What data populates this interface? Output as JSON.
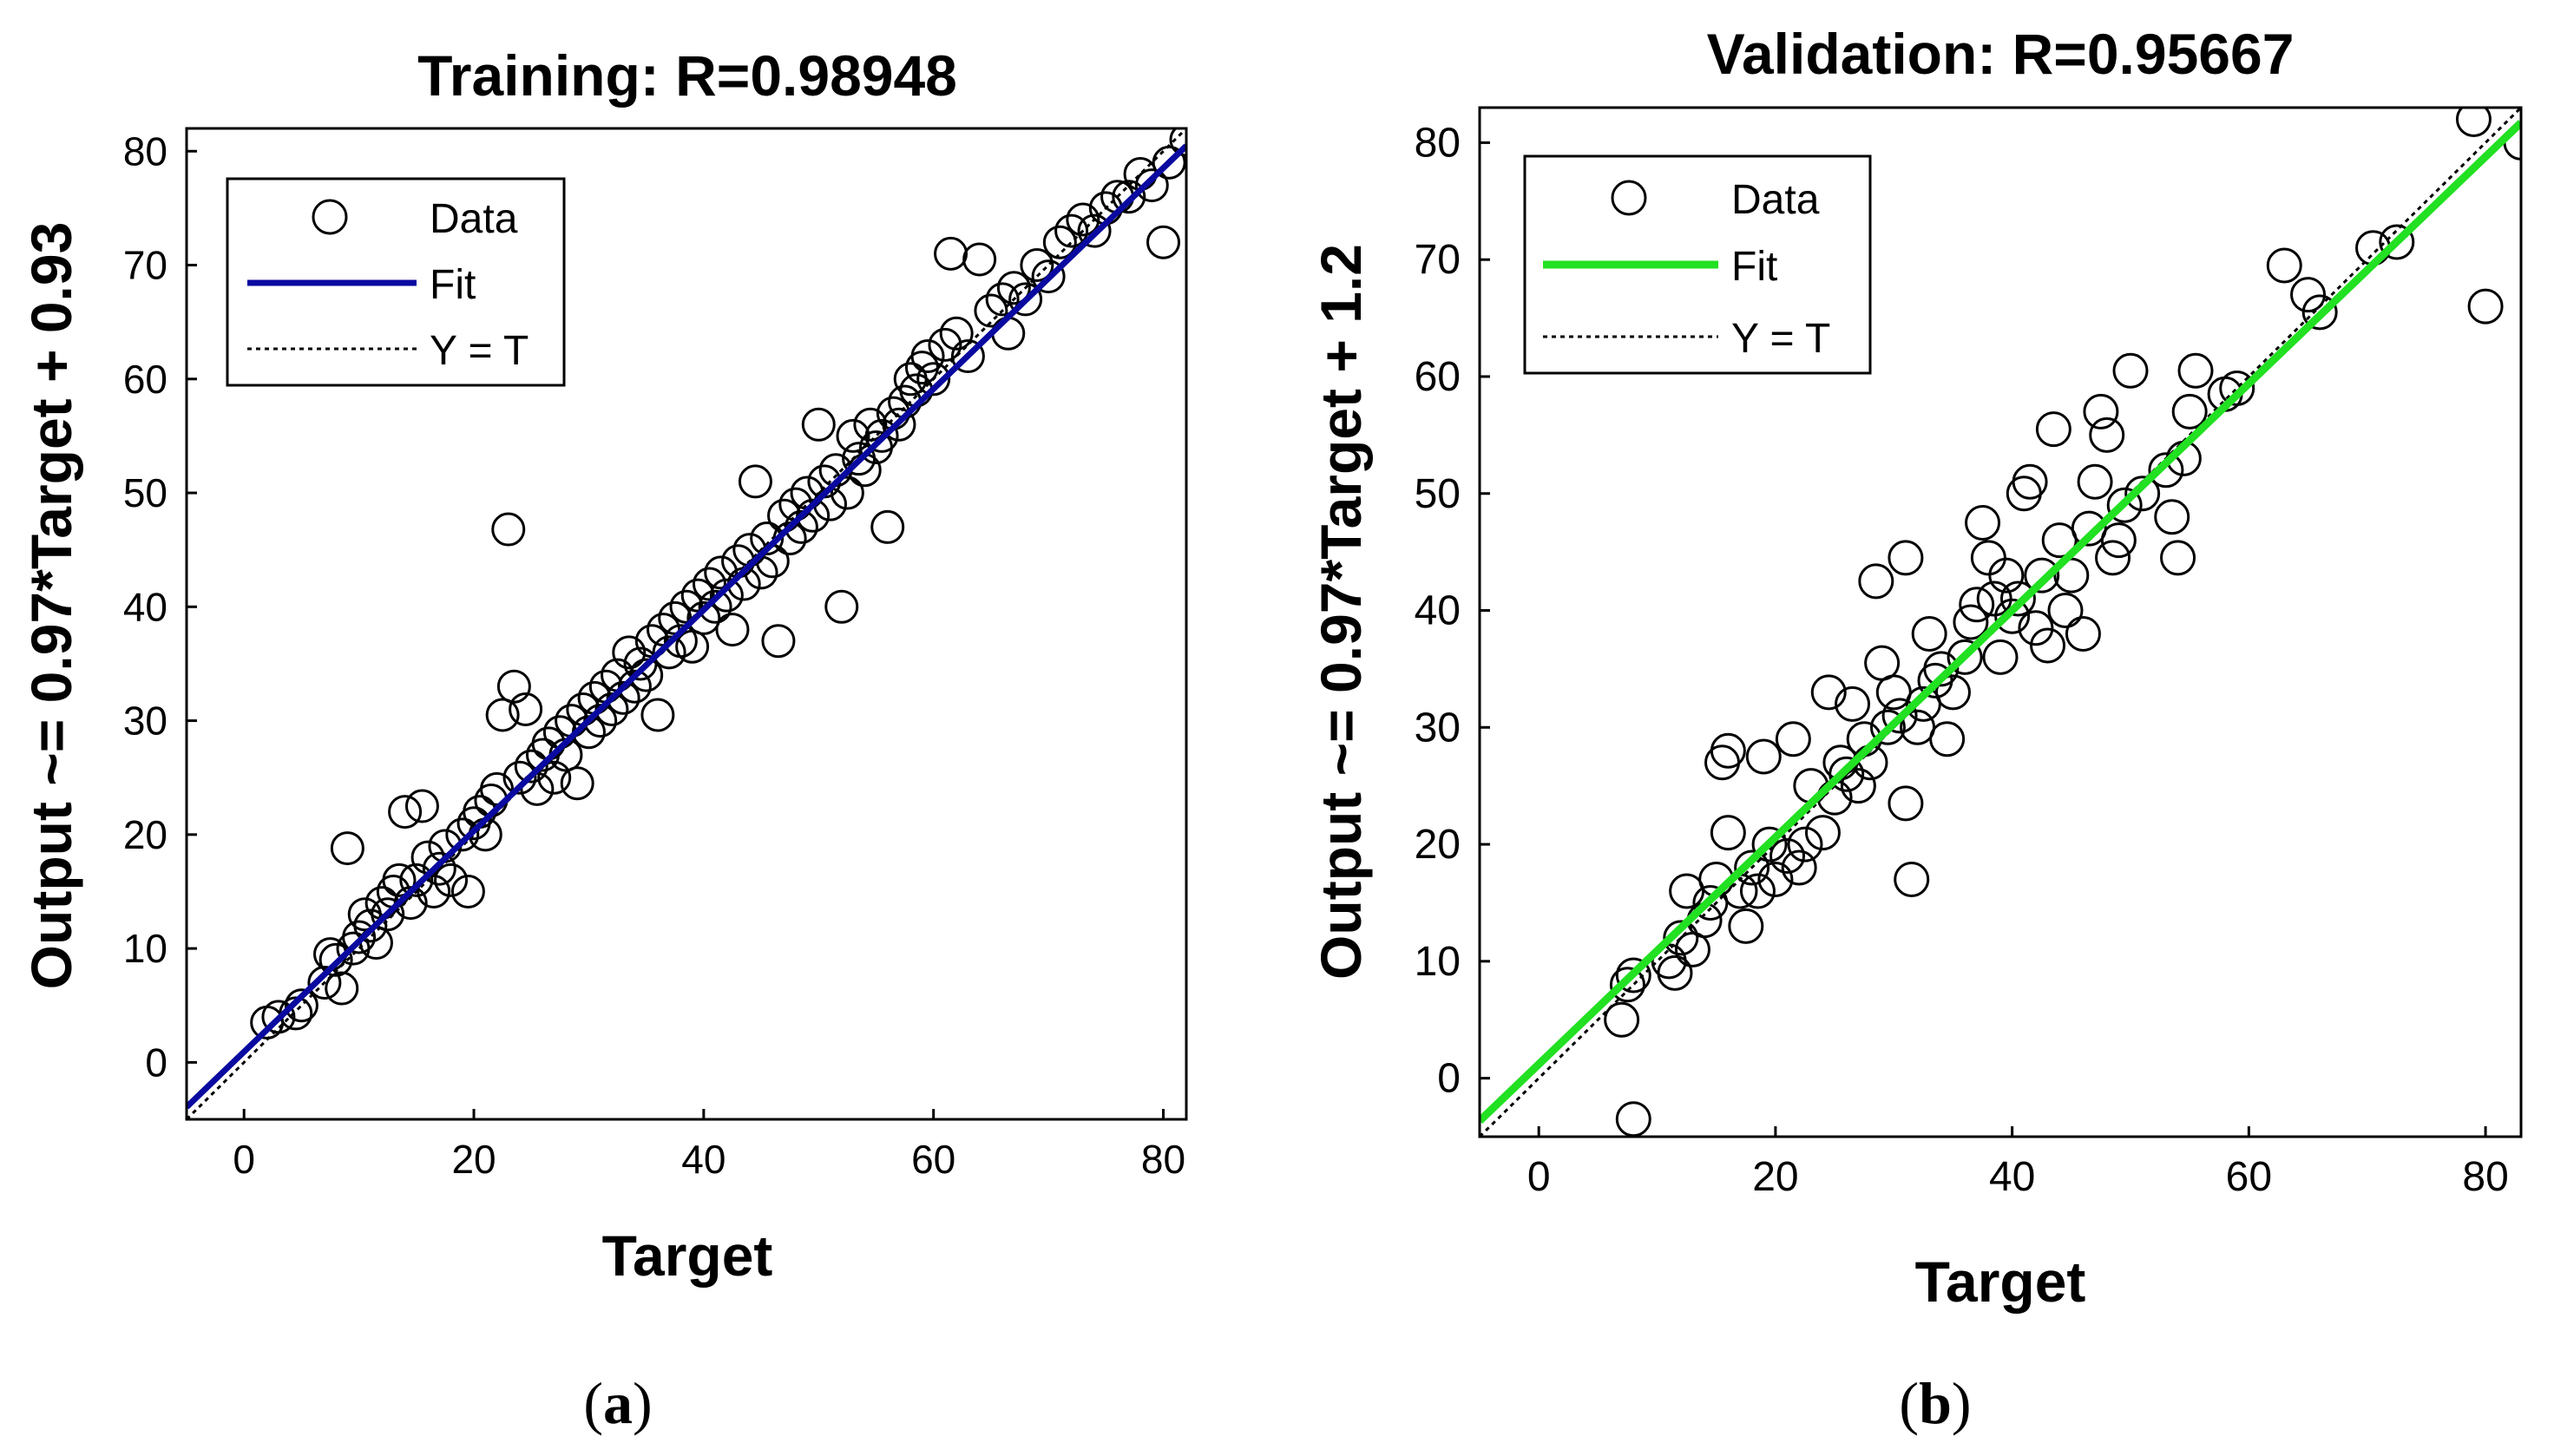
{
  "chart_data": [
    {
      "type": "scatter",
      "panel_label": "(a)",
      "panel_letter": "a",
      "title": "Training: R=0.98948",
      "xlabel": "Target",
      "ylabel": "Output ~= 0.97*Target + 0.93",
      "xlim": [
        -5,
        82
      ],
      "ylim": [
        -5,
        82
      ],
      "xticks": [
        0,
        20,
        40,
        60,
        80
      ],
      "yticks": [
        0,
        10,
        20,
        30,
        40,
        50,
        60,
        70,
        80
      ],
      "grid": false,
      "legend_position": "top-left",
      "legend": {
        "data_label": "Data",
        "fit_label": "Fit",
        "ideal_label": "Y = T"
      },
      "fit": {
        "slope": 0.97,
        "intercept": 0.93,
        "color": "#0a0aa0"
      },
      "ideal_color": "#000000",
      "marker_color": "#000000",
      "points": [
        [
          2,
          3.5
        ],
        [
          3,
          4
        ],
        [
          4.5,
          4.3
        ],
        [
          5,
          5
        ],
        [
          7,
          7
        ],
        [
          7.5,
          9.5
        ],
        [
          8,
          9
        ],
        [
          8.5,
          6.5
        ],
        [
          9,
          18.8
        ],
        [
          9.5,
          10
        ],
        [
          10,
          11
        ],
        [
          10.5,
          13
        ],
        [
          11,
          12
        ],
        [
          11.5,
          10.5
        ],
        [
          12,
          14
        ],
        [
          12.5,
          13
        ],
        [
          13,
          15
        ],
        [
          13.5,
          16
        ],
        [
          14,
          22
        ],
        [
          14.5,
          14
        ],
        [
          15,
          16
        ],
        [
          15.5,
          22.5
        ],
        [
          16,
          18
        ],
        [
          16.5,
          15
        ],
        [
          17,
          17
        ],
        [
          17.5,
          19
        ],
        [
          18,
          16
        ],
        [
          19,
          20
        ],
        [
          19.5,
          15
        ],
        [
          20,
          21
        ],
        [
          20.5,
          22
        ],
        [
          21,
          20
        ],
        [
          21.5,
          23
        ],
        [
          22,
          24
        ],
        [
          22.5,
          30.5
        ],
        [
          23,
          46.8
        ],
        [
          23.5,
          33
        ],
        [
          24,
          25
        ],
        [
          24.5,
          31
        ],
        [
          25,
          26
        ],
        [
          25.5,
          24
        ],
        [
          26,
          27
        ],
        [
          26.5,
          28
        ],
        [
          27,
          25
        ],
        [
          27.5,
          29
        ],
        [
          28,
          27
        ],
        [
          28.5,
          30
        ],
        [
          29,
          24.5
        ],
        [
          29.5,
          31
        ],
        [
          30,
          29
        ],
        [
          30.5,
          32
        ],
        [
          31,
          30
        ],
        [
          31.5,
          33
        ],
        [
          32,
          31
        ],
        [
          32.5,
          34
        ],
        [
          33,
          32
        ],
        [
          33.5,
          36
        ],
        [
          34,
          33
        ],
        [
          34.5,
          35
        ],
        [
          35,
          34
        ],
        [
          35.5,
          37
        ],
        [
          36,
          30.5
        ],
        [
          36.5,
          38
        ],
        [
          37,
          36
        ],
        [
          37.5,
          39
        ],
        [
          38,
          37
        ],
        [
          38.5,
          40
        ],
        [
          39,
          36.5
        ],
        [
          39.5,
          41
        ],
        [
          40,
          39
        ],
        [
          40.5,
          42
        ],
        [
          41,
          40
        ],
        [
          41.5,
          43
        ],
        [
          42,
          41
        ],
        [
          42.5,
          38
        ],
        [
          43,
          44
        ],
        [
          43.5,
          42
        ],
        [
          44,
          45
        ],
        [
          44.5,
          51
        ],
        [
          45,
          43
        ],
        [
          45.5,
          46
        ],
        [
          46,
          44
        ],
        [
          46.5,
          37
        ],
        [
          47,
          48
        ],
        [
          47.5,
          46
        ],
        [
          48,
          49
        ],
        [
          48.5,
          47
        ],
        [
          49,
          50
        ],
        [
          49.5,
          48
        ],
        [
          50,
          56
        ],
        [
          50.5,
          51
        ],
        [
          51,
          49
        ],
        [
          51.5,
          52
        ],
        [
          52,
          40
        ],
        [
          52.5,
          50
        ],
        [
          53,
          55
        ],
        [
          53.5,
          53
        ],
        [
          54,
          52
        ],
        [
          54.5,
          56
        ],
        [
          55,
          54
        ],
        [
          55.5,
          55
        ],
        [
          56,
          47
        ],
        [
          56.5,
          57
        ],
        [
          57,
          56
        ],
        [
          57.5,
          58
        ],
        [
          58,
          60
        ],
        [
          58.5,
          59
        ],
        [
          59,
          61
        ],
        [
          59.5,
          62
        ],
        [
          60,
          60
        ],
        [
          61,
          63
        ],
        [
          61.5,
          71
        ],
        [
          62,
          64
        ],
        [
          63,
          62
        ],
        [
          64,
          70.5
        ],
        [
          65,
          66
        ],
        [
          66,
          67
        ],
        [
          66.5,
          64
        ],
        [
          67,
          68
        ],
        [
          68,
          67
        ],
        [
          69,
          70
        ],
        [
          70,
          69
        ],
        [
          71,
          72
        ],
        [
          72,
          73
        ],
        [
          73,
          74
        ],
        [
          74,
          73
        ],
        [
          75,
          75
        ],
        [
          76,
          76
        ],
        [
          77,
          76
        ],
        [
          78,
          78
        ],
        [
          79,
          77
        ],
        [
          80,
          72
        ],
        [
          80.5,
          79
        ],
        [
          82,
          81
        ]
      ]
    },
    {
      "type": "scatter",
      "panel_label": "(b)",
      "panel_letter": "b",
      "title": "Validation: R=0.95667",
      "xlabel": "Target",
      "ylabel": "Output ~= 0.97*Target + 1.2",
      "xlim": [
        -5,
        83
      ],
      "ylim": [
        -5,
        83
      ],
      "xticks": [
        0,
        20,
        40,
        60,
        80
      ],
      "yticks": [
        0,
        10,
        20,
        30,
        40,
        50,
        60,
        70,
        80
      ],
      "grid": false,
      "legend_position": "top-left",
      "legend": {
        "data_label": "Data",
        "fit_label": "Fit",
        "ideal_label": "Y = T"
      },
      "fit": {
        "slope": 0.97,
        "intercept": 1.2,
        "color": "#22e022"
      },
      "ideal_color": "#000000",
      "marker_color": "#000000",
      "points": [
        [
          7,
          5
        ],
        [
          7.5,
          8
        ],
        [
          8,
          8.8
        ],
        [
          8,
          -3.5
        ],
        [
          11,
          10
        ],
        [
          11.5,
          9
        ],
        [
          12,
          12
        ],
        [
          12.5,
          16
        ],
        [
          13,
          11
        ],
        [
          14,
          13.5
        ],
        [
          14.5,
          15
        ],
        [
          15,
          17
        ],
        [
          15.5,
          27
        ],
        [
          16,
          28
        ],
        [
          16,
          21
        ],
        [
          17,
          16
        ],
        [
          17.5,
          13
        ],
        [
          18,
          18
        ],
        [
          18.5,
          16
        ],
        [
          19,
          27.5
        ],
        [
          19.5,
          20
        ],
        [
          20,
          17
        ],
        [
          21,
          19
        ],
        [
          21.5,
          29
        ],
        [
          22,
          18
        ],
        [
          22.5,
          20
        ],
        [
          23,
          25
        ],
        [
          24,
          21
        ],
        [
          24.5,
          33
        ],
        [
          25,
          24
        ],
        [
          25.5,
          27
        ],
        [
          26,
          26
        ],
        [
          26.5,
          32
        ],
        [
          27,
          25
        ],
        [
          27.5,
          29
        ],
        [
          28,
          27
        ],
        [
          28.5,
          42.5
        ],
        [
          29,
          35.5
        ],
        [
          29.5,
          30
        ],
        [
          30,
          33
        ],
        [
          30.5,
          31
        ],
        [
          31,
          44.5
        ],
        [
          31,
          23.5
        ],
        [
          31.5,
          17
        ],
        [
          32,
          30
        ],
        [
          32.5,
          32
        ],
        [
          33,
          38
        ],
        [
          33.5,
          34
        ],
        [
          34,
          35
        ],
        [
          34.5,
          29
        ],
        [
          35,
          33
        ],
        [
          36,
          36
        ],
        [
          36.5,
          39
        ],
        [
          37,
          40.5
        ],
        [
          37.5,
          47.5
        ],
        [
          38,
          44.5
        ],
        [
          38.5,
          41
        ],
        [
          39,
          36
        ],
        [
          39.5,
          43
        ],
        [
          40,
          39.5
        ],
        [
          40.5,
          41
        ],
        [
          41,
          50
        ],
        [
          41.5,
          51
        ],
        [
          42,
          38.5
        ],
        [
          42.5,
          43
        ],
        [
          43,
          37
        ],
        [
          43.5,
          55.5
        ],
        [
          44,
          46
        ],
        [
          44.5,
          40
        ],
        [
          45,
          43
        ],
        [
          46,
          38
        ],
        [
          46.5,
          47
        ],
        [
          47,
          51
        ],
        [
          47.5,
          57
        ],
        [
          48,
          55
        ],
        [
          48.5,
          44.5
        ],
        [
          49,
          46
        ],
        [
          49.5,
          49
        ],
        [
          50,
          60.5
        ],
        [
          51,
          50
        ],
        [
          53,
          52
        ],
        [
          53.5,
          48
        ],
        [
          54,
          44.5
        ],
        [
          54.5,
          53
        ],
        [
          55,
          57
        ],
        [
          55.5,
          60.5
        ],
        [
          58,
          58.5
        ],
        [
          59,
          59
        ],
        [
          63,
          69.5
        ],
        [
          65,
          67
        ],
        [
          66,
          65.5
        ],
        [
          70.5,
          71
        ],
        [
          72.5,
          71.5
        ],
        [
          79,
          82
        ],
        [
          80,
          66
        ],
        [
          83,
          80
        ]
      ]
    }
  ]
}
